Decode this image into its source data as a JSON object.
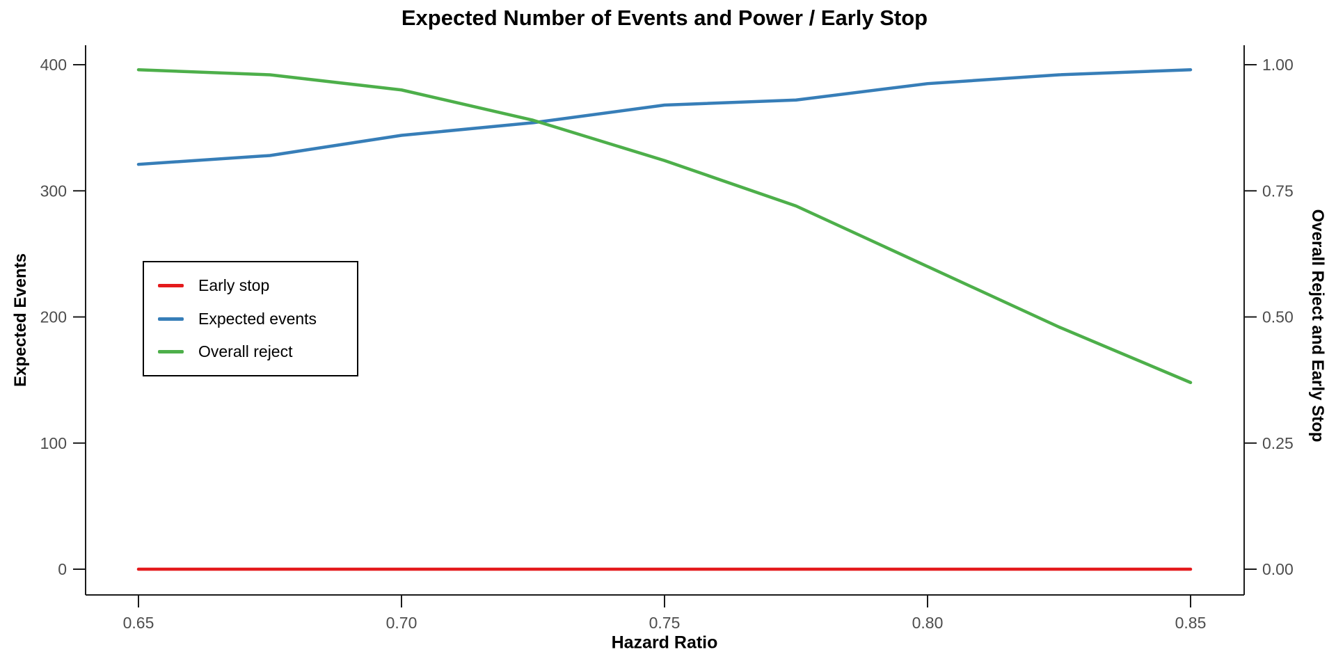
{
  "chart_data": {
    "type": "line",
    "title": "Expected Number of Events and Power / Early Stop",
    "xlabel": "Hazard Ratio",
    "ylabel_left": "Expected Events",
    "ylabel_right": "Overall Reject and Early Stop",
    "x": [
      0.65,
      0.675,
      0.7,
      0.725,
      0.75,
      0.775,
      0.8,
      0.825,
      0.85
    ],
    "xlim": [
      0.65,
      0.85
    ],
    "x_tick_values": [
      0.65,
      0.7,
      0.75,
      0.8,
      0.85
    ],
    "x_tick_labels": [
      "0.65",
      "0.70",
      "0.75",
      "0.80",
      "0.85"
    ],
    "y_left": {
      "range": [
        0,
        400
      ],
      "tick_values": [
        0,
        100,
        200,
        300,
        400
      ],
      "tick_labels": [
        "0",
        "100",
        "200",
        "300",
        "400"
      ]
    },
    "y_right": {
      "range": [
        0,
        1
      ],
      "tick_values": [
        0,
        0.25,
        0.5,
        0.75,
        1.0
      ],
      "tick_labels": [
        "0.00",
        "0.25",
        "0.50",
        "0.75",
        "1.00"
      ]
    },
    "series": [
      {
        "name": "Early stop",
        "axis": "right",
        "color": "#E41A1C",
        "values": [
          0,
          0,
          0,
          0,
          0,
          0,
          0,
          0,
          0
        ]
      },
      {
        "name": "Expected events",
        "axis": "left",
        "color": "#377EB8",
        "values": [
          321,
          328,
          344,
          354,
          368,
          372,
          385,
          392,
          396
        ]
      },
      {
        "name": "Overall reject",
        "axis": "right",
        "color": "#4DAF4A",
        "values": [
          0.99,
          0.98,
          0.95,
          0.89,
          0.81,
          0.72,
          0.6,
          0.48,
          0.37
        ]
      }
    ],
    "legend": {
      "position": "middle-left",
      "entries": [
        "Early stop",
        "Expected events",
        "Overall reject"
      ]
    },
    "grid": false,
    "colors": {
      "axis": "#1a1a1a",
      "tick_label": "#4d4d4d",
      "text": "#000000",
      "background": "#ffffff"
    }
  }
}
